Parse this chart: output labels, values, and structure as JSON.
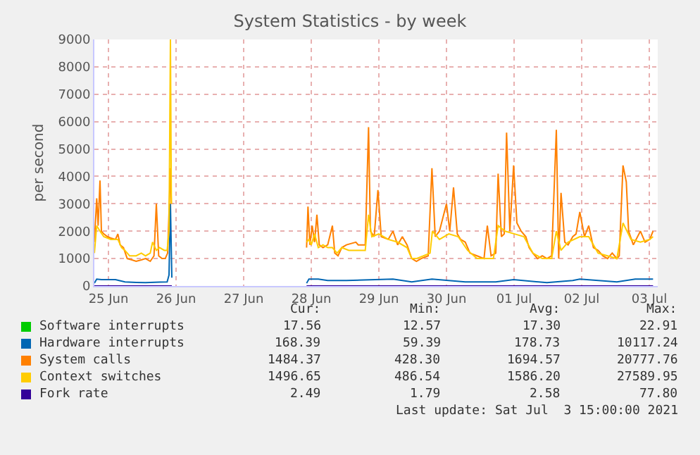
{
  "chart_data": {
    "type": "line",
    "title": "System Statistics - by week",
    "ylabel": "per second",
    "xlim": [
      "2021-06-25T07:00",
      "2021-07-03T15:00"
    ],
    "xticks": [
      {
        "value": "2021-06-25T12:00",
        "label": "25 Jun"
      },
      {
        "value": "2021-06-26T12:00",
        "label": "26 Jun"
      },
      {
        "value": "2021-06-27T12:00",
        "label": "27 Jun"
      },
      {
        "value": "2021-06-28T12:00",
        "label": "28 Jun"
      },
      {
        "value": "2021-06-29T12:00",
        "label": "29 Jun"
      },
      {
        "value": "2021-06-30T12:00",
        "label": "30 Jun"
      },
      {
        "value": "2021-07-01T12:00",
        "label": "01 Jul"
      },
      {
        "value": "2021-07-02T12:00",
        "label": "02 Jul"
      },
      {
        "value": "2021-07-03T12:00",
        "label": "03 Jul"
      }
    ],
    "ylim": [
      0,
      9000
    ],
    "yticks": [
      0,
      1000,
      2000,
      3000,
      4000,
      5000,
      6000,
      7000,
      8000,
      9000
    ],
    "grid": true,
    "legend": "bottom",
    "series": [
      {
        "name": "Software interrupts",
        "color": "#00cc00"
      },
      {
        "name": "Hardware interrupts",
        "color": "#0066b3",
        "x": [
          "2021-06-25T07:00",
          "2021-06-25T07:50",
          "2021-06-25T09:30",
          "2021-06-25T14:30",
          "2021-06-25T17:50",
          "2021-06-25T21:50",
          "2021-06-26T01:10",
          "2021-06-26T06:10",
          "2021-06-26T08:50",
          "2021-06-26T09:30",
          "2021-06-26T10:00",
          "2021-06-26T10:30",
          "2021-06-27T12:00",
          "2021-06-28T10:20",
          "2021-06-28T11:10",
          "2021-06-28T14:30",
          "2021-06-28T17:50",
          "2021-06-29T00:30",
          "2021-06-29T17:00",
          "2021-06-29T23:40",
          "2021-06-30T06:50",
          "2021-06-30T18:40",
          "2021-07-01T05:30",
          "2021-07-01T11:50",
          "2021-07-01T23:40",
          "2021-07-02T08:50",
          "2021-07-02T11:20",
          "2021-07-03T00:30",
          "2021-07-03T07:00",
          "2021-07-03T13:20"
        ],
        "values": [
          100,
          250,
          230,
          230,
          150,
          130,
          120,
          140,
          150,
          400,
          3000,
          300,
          null,
          100,
          250,
          250,
          200,
          200,
          250,
          150,
          250,
          150,
          150,
          230,
          120,
          200,
          250,
          150,
          250,
          250
        ]
      },
      {
        "name": "System calls",
        "color": "#ff8000",
        "x": [
          "2021-06-25T07:00",
          "2021-06-25T07:50",
          "2021-06-25T08:20",
          "2021-06-25T09:00",
          "2021-06-25T09:30",
          "2021-06-25T10:20",
          "2021-06-25T11:40",
          "2021-06-25T12:50",
          "2021-06-25T14:30",
          "2021-06-25T15:20",
          "2021-06-25T16:10",
          "2021-06-25T17:20",
          "2021-06-25T18:40",
          "2021-06-25T20:20",
          "2021-06-25T21:50",
          "2021-06-25T23:40",
          "2021-06-26T01:10",
          "2021-06-26T02:50",
          "2021-06-26T04:10",
          "2021-06-26T05:00",
          "2021-06-26T05:50",
          "2021-06-26T07:00",
          "2021-06-26T08:10",
          "2021-06-26T09:00",
          "2021-06-26T09:30",
          "2021-06-26T10:00",
          "2021-06-26T10:20",
          "2021-06-27T12:00",
          "2021-06-28T10:20",
          "2021-06-28T10:50",
          "2021-06-28T11:30",
          "2021-06-28T12:20",
          "2021-06-28T13:10",
          "2021-06-28T14:00",
          "2021-06-28T14:50",
          "2021-06-28T16:10",
          "2021-06-28T17:50",
          "2021-06-28T19:30",
          "2021-06-28T20:20",
          "2021-06-28T21:30",
          "2021-06-28T22:50",
          "2021-06-29T00:30",
          "2021-06-29T03:50",
          "2021-06-29T04:40",
          "2021-06-29T07:10",
          "2021-06-29T08:20",
          "2021-06-29T09:00",
          "2021-06-29T10:20",
          "2021-06-29T11:40",
          "2021-06-29T12:50",
          "2021-06-29T15:20",
          "2021-06-29T17:00",
          "2021-06-29T18:40",
          "2021-06-29T20:20",
          "2021-06-29T22:00",
          "2021-06-29T23:40",
          "2021-06-30T01:20",
          "2021-06-30T03:00",
          "2021-06-30T05:30",
          "2021-06-30T06:50",
          "2021-06-30T08:00",
          "2021-06-30T09:30",
          "2021-06-30T12:00",
          "2021-06-30T13:10",
          "2021-06-30T14:30",
          "2021-06-30T15:50",
          "2021-06-30T17:00",
          "2021-06-30T18:40",
          "2021-06-30T20:20",
          "2021-06-30T22:50",
          "2021-07-01T01:20",
          "2021-07-01T02:30",
          "2021-07-01T03:50",
          "2021-07-01T05:30",
          "2021-07-01T06:20",
          "2021-07-01T07:30",
          "2021-07-01T08:30",
          "2021-07-01T09:20",
          "2021-07-01T10:30",
          "2021-07-01T11:50",
          "2021-07-01T13:00",
          "2021-07-01T14:30",
          "2021-07-01T16:10",
          "2021-07-01T17:20",
          "2021-07-01T18:40",
          "2021-07-01T20:20",
          "2021-07-01T22:00",
          "2021-07-01T23:40",
          "2021-07-02T01:20",
          "2021-07-02T03:00",
          "2021-07-02T03:50",
          "2021-07-02T04:40",
          "2021-07-02T06:00",
          "2021-07-02T07:10",
          "2021-07-02T08:50",
          "2021-07-02T10:00",
          "2021-07-02T11:20",
          "2021-07-02T13:00",
          "2021-07-02T14:30",
          "2021-07-02T16:10",
          "2021-07-02T17:50",
          "2021-07-02T19:30",
          "2021-07-02T21:10",
          "2021-07-02T22:50",
          "2021-07-03T00:30",
          "2021-07-03T01:20",
          "2021-07-03T02:40",
          "2021-07-03T03:50",
          "2021-07-03T04:40",
          "2021-07-03T06:20",
          "2021-07-03T08:50",
          "2021-07-03T10:30",
          "2021-07-03T12:10",
          "2021-07-03T13:20"
        ],
        "values": [
          1600,
          3200,
          2200,
          3850,
          2000,
          1900,
          1800,
          1750,
          1700,
          1900,
          1500,
          1400,
          1000,
          950,
          900,
          950,
          1000,
          900,
          1100,
          3000,
          1100,
          1000,
          1000,
          1200,
          2700,
          4300,
          3000,
          null,
          1400,
          2900,
          1500,
          2200,
          1600,
          2600,
          1500,
          1400,
          1500,
          2200,
          1200,
          1100,
          1400,
          1500,
          1600,
          1500,
          1500,
          5800,
          2000,
          1800,
          3500,
          1800,
          1700,
          2000,
          1500,
          1800,
          1500,
          1000,
          900,
          1000,
          1100,
          4300,
          1800,
          2000,
          3000,
          2000,
          3600,
          1900,
          1700,
          1600,
          1200,
          1100,
          1000,
          2200,
          1100,
          1200,
          4100,
          1800,
          1900,
          5600,
          2000,
          4400,
          2300,
          2000,
          1800,
          1400,
          1200,
          1000,
          1100,
          1000,
          1100,
          5700,
          1000,
          3400,
          1600,
          1500,
          1800,
          1900,
          2700,
          1800,
          2200,
          1400,
          1300,
          1100,
          1000,
          1200,
          1000,
          1100,
          4400,
          3800,
          2000,
          1500,
          2000,
          1600,
          1700,
          2000
        ]
      },
      {
        "name": "Context switches",
        "color": "#ffcc00",
        "x": [
          "2021-06-25T07:00",
          "2021-06-25T07:50",
          "2021-06-25T09:00",
          "2021-06-25T10:20",
          "2021-06-25T12:50",
          "2021-06-25T15:20",
          "2021-06-25T16:40",
          "2021-06-25T17:50",
          "2021-06-25T19:30",
          "2021-06-25T21:50",
          "2021-06-25T23:40",
          "2021-06-26T01:10",
          "2021-06-26T02:50",
          "2021-06-26T03:40",
          "2021-06-26T05:00",
          "2021-06-26T06:10",
          "2021-06-26T07:50",
          "2021-06-26T08:50",
          "2021-06-26T09:30",
          "2021-06-26T10:00",
          "2021-06-26T10:20",
          "2021-06-27T12:00",
          "2021-06-28T10:20",
          "2021-06-28T11:10",
          "2021-06-28T12:00",
          "2021-06-28T13:10",
          "2021-06-28T14:30",
          "2021-06-28T16:10",
          "2021-06-28T17:50",
          "2021-06-28T19:30",
          "2021-06-28T21:10",
          "2021-06-28T22:50",
          "2021-06-29T01:20",
          "2021-06-29T04:40",
          "2021-06-29T07:10",
          "2021-06-29T08:20",
          "2021-06-29T09:30",
          "2021-06-29T12:00",
          "2021-06-29T15:20",
          "2021-06-29T18:40",
          "2021-06-29T22:00",
          "2021-06-29T23:40",
          "2021-06-30T01:20",
          "2021-06-30T03:50",
          "2021-06-30T06:10",
          "2021-06-30T07:00",
          "2021-06-30T09:30",
          "2021-06-30T12:50",
          "2021-06-30T16:10",
          "2021-06-30T19:30",
          "2021-06-30T22:50",
          "2021-07-01T02:10",
          "2021-07-01T04:40",
          "2021-07-01T06:20",
          "2021-07-01T08:50",
          "2021-07-01T12:10",
          "2021-07-01T15:30",
          "2021-07-01T18:40",
          "2021-07-01T22:00",
          "2021-07-02T01:20",
          "2021-07-02T03:00",
          "2021-07-02T04:40",
          "2021-07-02T07:10",
          "2021-07-02T11:20",
          "2021-07-02T14:30",
          "2021-07-02T17:50",
          "2021-07-02T21:10",
          "2021-07-03T00:30",
          "2021-07-03T02:40",
          "2021-07-03T05:30",
          "2021-07-03T08:50",
          "2021-07-03T12:10",
          "2021-07-03T13:20"
        ],
        "values": [
          1200,
          2200,
          2000,
          1800,
          1700,
          1700,
          1400,
          1300,
          1100,
          1100,
          1200,
          1100,
          1200,
          1600,
          1300,
          1400,
          1300,
          1300,
          2000,
          9000,
          3000,
          null,
          1600,
          1700,
          1500,
          1900,
          1400,
          1500,
          1400,
          1400,
          1200,
          1400,
          1300,
          1300,
          1300,
          2600,
          1800,
          1900,
          1700,
          1600,
          1400,
          1000,
          1000,
          1100,
          1200,
          2000,
          1700,
          1900,
          1800,
          1300,
          1000,
          1000,
          1000,
          2200,
          2000,
          1900,
          1800,
          1200,
          1000,
          1000,
          2000,
          1300,
          1600,
          1800,
          1800,
          1200,
          1100,
          1000,
          2300,
          1700,
          1600,
          1700,
          1800
        ]
      },
      {
        "name": "Fork rate",
        "color": "#330099",
        "x": [
          "2021-06-25T07:00",
          "2021-06-25T18:00",
          "2021-06-26T10:30",
          "2021-06-27T12:00",
          "2021-06-28T10:20",
          "2021-06-30T12:00",
          "2021-07-03T13:20"
        ],
        "values": [
          0,
          0,
          0,
          null,
          0,
          0,
          0
        ]
      }
    ],
    "annotations": [
      "Cur:",
      "Min:",
      "Avg:",
      "Max:",
      "17.56",
      "12.57",
      "17.30",
      "22.91",
      "168.39",
      "59.39",
      "178.73",
      "10117.24",
      "1484.37",
      "428.30",
      "1694.57",
      "20777.76",
      "1496.65",
      "486.54",
      "1586.20",
      "27589.95",
      "2.49",
      "1.79",
      "2.58",
      "77.80",
      "Last update: Sat Jul  3 15:00:00 2021"
    ]
  }
}
